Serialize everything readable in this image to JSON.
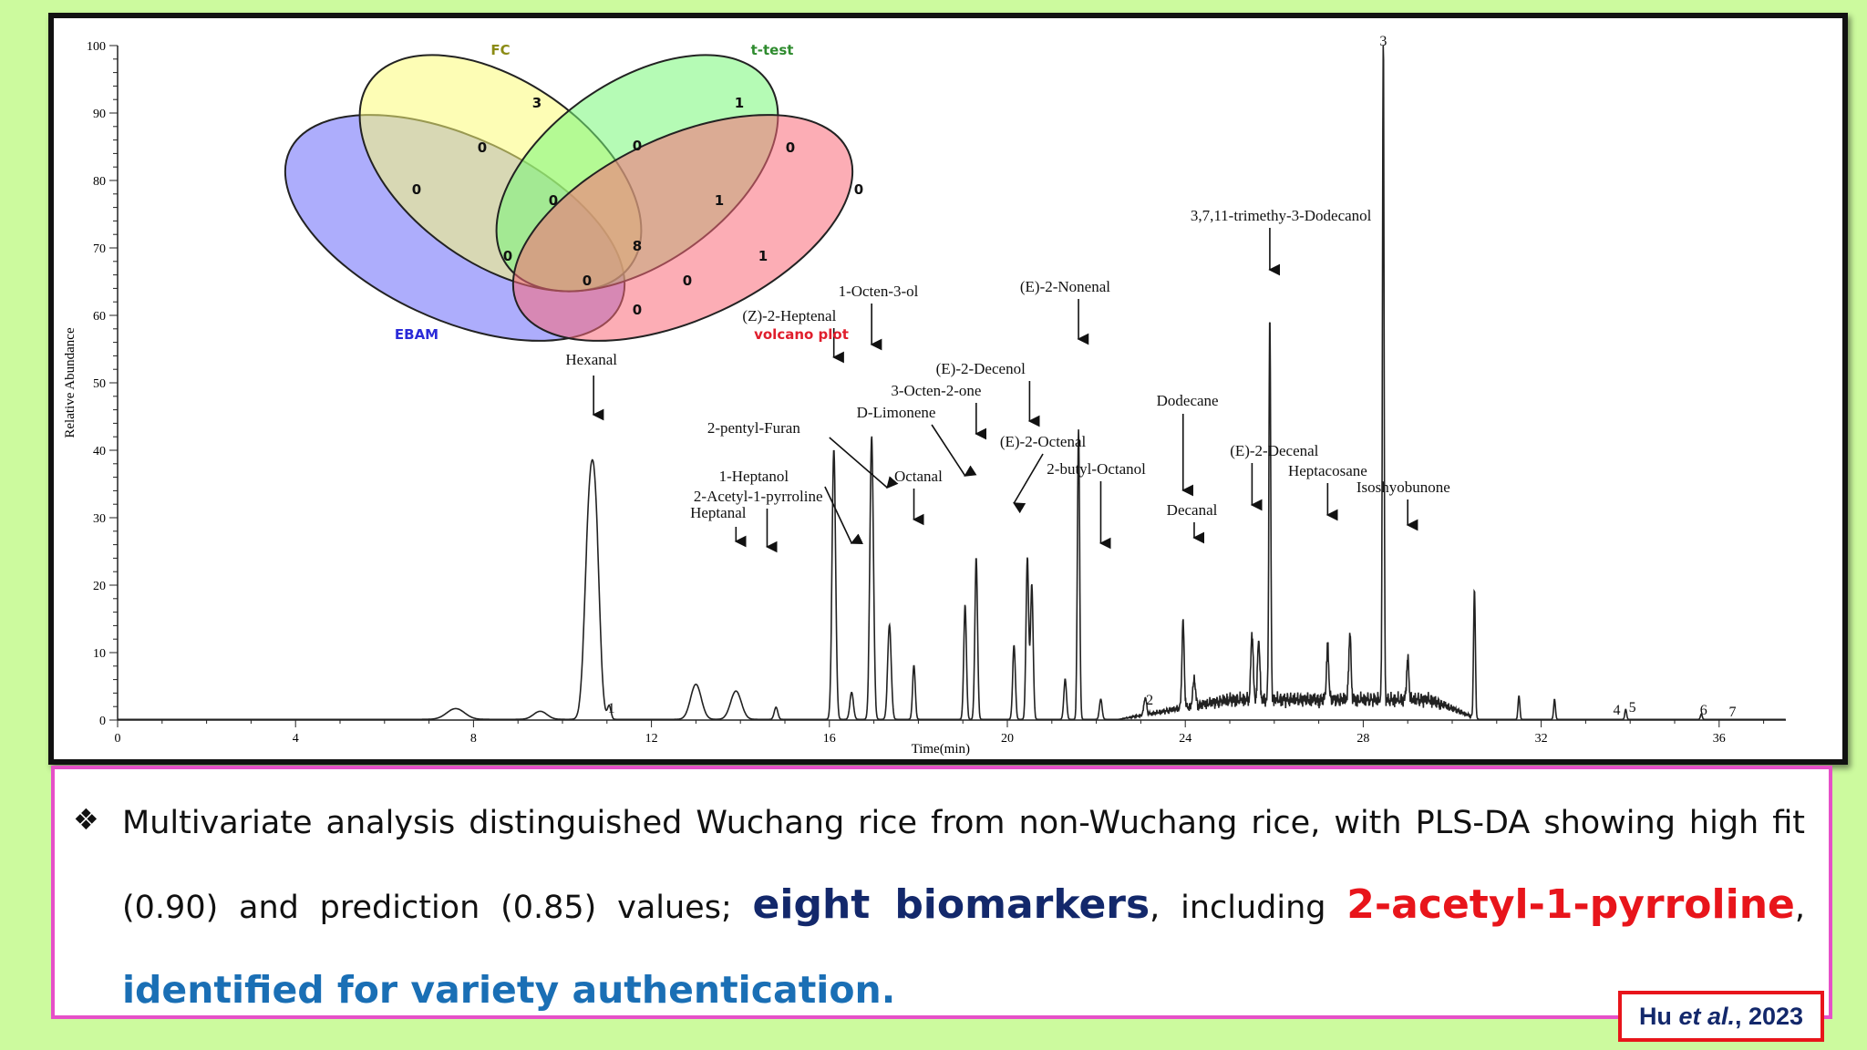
{
  "chart_data": {
    "type": "line",
    "xlabel": "Time(min)",
    "ylabel": "Relative Abundance",
    "xlim": [
      0,
      37.5
    ],
    "ylim": [
      0,
      100
    ],
    "x_ticks": [
      0,
      4,
      8,
      12,
      16,
      20,
      24,
      28,
      32,
      36
    ],
    "y_ticks": [
      0,
      10,
      20,
      30,
      40,
      50,
      60,
      70,
      80,
      90,
      100
    ],
    "peaks": [
      {
        "t": 7.6,
        "h": 1.6,
        "w": 0.2
      },
      {
        "t": 9.5,
        "h": 1.2,
        "w": 0.15
      },
      {
        "t": 10.6,
        "h": 28.5,
        "w": 0.1
      },
      {
        "t": 10.75,
        "h": 24,
        "w": 0.09
      },
      {
        "t": 11.05,
        "h": 2,
        "w": 0.04
      },
      {
        "t": 13.0,
        "h": 5.2,
        "w": 0.12
      },
      {
        "t": 13.9,
        "h": 4.2,
        "w": 0.12
      },
      {
        "t": 14.8,
        "h": 1.8,
        "w": 0.04
      },
      {
        "t": 16.1,
        "h": 40,
        "w": 0.04
      },
      {
        "t": 16.5,
        "h": 4,
        "w": 0.04
      },
      {
        "t": 16.95,
        "h": 42,
        "w": 0.04
      },
      {
        "t": 17.35,
        "h": 14,
        "w": 0.04
      },
      {
        "t": 17.9,
        "h": 8,
        "w": 0.03
      },
      {
        "t": 19.05,
        "h": 17,
        "w": 0.03
      },
      {
        "t": 19.3,
        "h": 24,
        "w": 0.03
      },
      {
        "t": 20.15,
        "h": 11,
        "w": 0.03
      },
      {
        "t": 20.45,
        "h": 24,
        "w": 0.03
      },
      {
        "t": 20.55,
        "h": 20,
        "w": 0.03
      },
      {
        "t": 21.3,
        "h": 6,
        "w": 0.03
      },
      {
        "t": 21.6,
        "h": 43,
        "w": 0.025
      },
      {
        "t": 22.1,
        "h": 3,
        "w": 0.03
      },
      {
        "t": 23.1,
        "h": 2.5,
        "w": 0.03
      },
      {
        "t": 23.95,
        "h": 13,
        "w": 0.025
      },
      {
        "t": 24.2,
        "h": 4,
        "w": 0.03
      },
      {
        "t": 25.5,
        "h": 10,
        "w": 0.025
      },
      {
        "t": 25.65,
        "h": 9,
        "w": 0.025
      },
      {
        "t": 25.9,
        "h": 57,
        "w": 0.02
      },
      {
        "t": 27.2,
        "h": 8,
        "w": 0.025
      },
      {
        "t": 27.7,
        "h": 10,
        "w": 0.025
      },
      {
        "t": 28.45,
        "h": 100,
        "w": 0.018
      },
      {
        "t": 29.0,
        "h": 6,
        "w": 0.025
      },
      {
        "t": 30.5,
        "h": 19,
        "w": 0.02
      },
      {
        "t": 31.5,
        "h": 3.5,
        "w": 0.02
      },
      {
        "t": 32.3,
        "h": 3,
        "w": 0.02
      },
      {
        "t": 33.9,
        "h": 1.5,
        "w": 0.02
      },
      {
        "t": 35.6,
        "h": 0.8,
        "w": 0.02
      }
    ],
    "annotations": [
      {
        "label": "Hexanal",
        "t": 10.7
      },
      {
        "label": "2-Acetyl-1-pyrroline",
        "t": 14.6
      },
      {
        "label": "Heptanal",
        "t": 13.9
      },
      {
        "label": "1-Heptanol",
        "t": 16.5
      },
      {
        "label": "2-pentyl-Furan",
        "t": 17.3
      },
      {
        "label": "(Z)-2-Heptenal",
        "t": 16.1
      },
      {
        "label": "1-Octen-3-ol",
        "t": 16.95
      },
      {
        "label": "Octanal",
        "t": 17.9
      },
      {
        "label": "D-Limonene",
        "t": 19.05
      },
      {
        "label": "3-Octen-2-one",
        "t": 19.3
      },
      {
        "label": "(E)-2-Decenol",
        "t": 20.5
      },
      {
        "label": "(E)-2-Octenal",
        "t": 20.15
      },
      {
        "label": "2-butyl-Octanol",
        "t": 22.1
      },
      {
        "label": "(E)-2-Nonenal",
        "t": 21.6
      },
      {
        "label": "Dodecane",
        "t": 23.95
      },
      {
        "label": "Decanal",
        "t": 24.2
      },
      {
        "label": "(E)-2-Decenal",
        "t": 25.5
      },
      {
        "label": "3,7,11-trimethy-3-Dodecanol",
        "t": 25.9
      },
      {
        "label": "Heptacosane",
        "t": 27.2
      },
      {
        "label": "Isoshyobunone",
        "t": 29.0
      }
    ],
    "peak_numbers": [
      {
        "label": "1",
        "t": 11.1
      },
      {
        "label": "2",
        "t": 23.2
      },
      {
        "label": "3",
        "t": 28.45
      },
      {
        "label": "4",
        "t": 33.7
      },
      {
        "label": "5",
        "t": 34.05
      },
      {
        "label": "6",
        "t": 35.65
      },
      {
        "label": "7",
        "t": 36.3
      }
    ]
  },
  "venn": {
    "sets": [
      {
        "name": "FC",
        "color": "#fcfc78"
      },
      {
        "name": "t-test",
        "color": "#78f878"
      },
      {
        "name": "EBAM",
        "color": "#6a6afa"
      },
      {
        "name": "volcano plot",
        "color": "#fa6a78"
      }
    ],
    "label_colors": {
      "FC": "#8b8b14",
      "t-test": "#2e8b2e",
      "EBAM": "#2b2bd8",
      "volcano plot": "#e01e2c"
    },
    "counts": {
      "fc_only": "3",
      "ttest_only": "1",
      "ebam_only": "0",
      "volcano_only": "0",
      "fc_ebam": "0",
      "fc_ttest": "0",
      "ttest_volcano": "0",
      "fc_ebam_ttest": "0",
      "fc_ttest_volcano": "1",
      "all": "8",
      "ebam_ttest": "0",
      "fc_volcano": "1",
      "ebam_ttest_volcano": "0",
      "fc_ebam_volcano": "0",
      "ebam_volcano": "0"
    }
  },
  "summary": {
    "part1": "Multivariate analysis distinguished Wuchang rice from non-Wuchang rice, with PLS-DA showing high fit (0.90) and prediction (0.85) values; ",
    "highlight1": "eight biomarkers",
    "part2": ", including ",
    "highlight2": "2-acetyl-1-pyrroline",
    "part3": ", ",
    "highlight3": "identified for variety authentication."
  },
  "citation": {
    "author": "Hu ",
    "etal": "et al.",
    "year": ", 2023"
  }
}
